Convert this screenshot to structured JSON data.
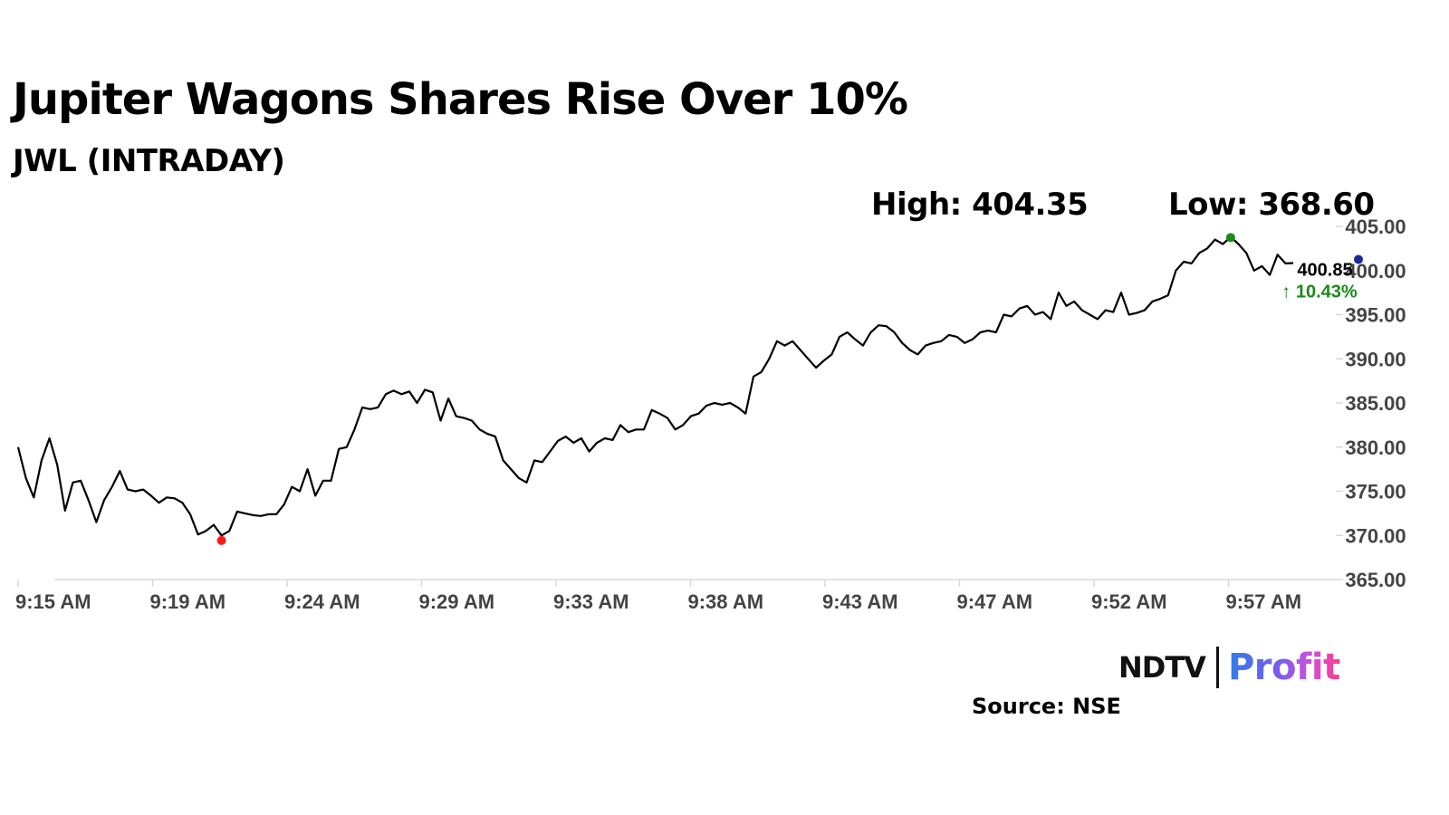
{
  "header": {
    "title": "Jupiter Wagons Shares Rise Over 10%",
    "subtitle": "JWL (INTRADAY)"
  },
  "stats": {
    "high_label": "High: 404.35",
    "low_label": "Low: 368.60"
  },
  "colors": {
    "line": "#000000",
    "axis": "#d9d9d9",
    "high_marker": "#1a8a1a",
    "low_marker": "#ff1a1a",
    "last_marker": "#1b2a9c",
    "change_text": "#1a8a1a"
  },
  "chart_data": {
    "type": "line",
    "title": "Jupiter Wagons Shares Rise Over 10%",
    "subtitle": "JWL (INTRADAY)",
    "xlabel": "",
    "ylabel": "",
    "x_ticks": [
      "9:15 AM",
      "9:19 AM",
      "9:24 AM",
      "9:29 AM",
      "9:33 AM",
      "9:38 AM",
      "9:43 AM",
      "9:47 AM",
      "9:52 AM",
      "9:57 AM"
    ],
    "y_ticks": [
      "405.00",
      "400.00",
      "395.00",
      "390.00",
      "385.00",
      "380.00",
      "375.00",
      "370.00",
      "365.00"
    ],
    "ylim": [
      365,
      405
    ],
    "y_axis_position": "right",
    "grid": false,
    "last_value_label": "400.85",
    "change_label": "10.43%",
    "series": [
      {
        "name": "JWL",
        "values": [
          380.0,
          376.5,
          374.3,
          378.5,
          381.0,
          378.0,
          372.8,
          376.0,
          376.2,
          374.0,
          371.5,
          374.0,
          375.5,
          377.3,
          375.2,
          375.0,
          375.2,
          374.5,
          373.7,
          374.3,
          374.2,
          373.7,
          372.4,
          370.1,
          370.5,
          371.2,
          370.0,
          370.5,
          372.7,
          372.5,
          372.3,
          372.2,
          372.4,
          372.4,
          373.5,
          375.5,
          375.0,
          377.5,
          374.5,
          376.2,
          376.2,
          379.8,
          380.0,
          382.0,
          384.5,
          384.3,
          384.5,
          386.0,
          386.4,
          386.0,
          386.3,
          385.0,
          386.5,
          386.2,
          383.0,
          385.5,
          383.5,
          383.3,
          383.0,
          382.0,
          381.5,
          381.2,
          378.5,
          377.5,
          376.5,
          376.0,
          378.5,
          378.3,
          379.5,
          380.7,
          381.2,
          380.5,
          381.0,
          379.5,
          380.5,
          381.0,
          380.8,
          382.5,
          381.7,
          382.0,
          382.0,
          384.2,
          383.8,
          383.3,
          382.0,
          382.5,
          383.5,
          383.8,
          384.7,
          385.0,
          384.8,
          385.0,
          384.5,
          383.8,
          388.0,
          388.5,
          390.0,
          392.0,
          391.5,
          392.0,
          391.0,
          390.0,
          389.0,
          389.8,
          390.5,
          392.5,
          393.0,
          392.2,
          391.5,
          393.0,
          393.8,
          393.7,
          393.0,
          391.8,
          391.0,
          390.5,
          391.5,
          391.8,
          392.0,
          392.7,
          392.5,
          391.8,
          392.2,
          393.0,
          393.2,
          393.0,
          395.0,
          394.8,
          395.7,
          396.0,
          395.0,
          395.3,
          394.5,
          397.5,
          396.0,
          396.5,
          395.5,
          395.0,
          394.5,
          395.5,
          395.3,
          397.5,
          395.0,
          395.2,
          395.5,
          396.5,
          396.8,
          397.2,
          400.0,
          401.0,
          400.8,
          402.0,
          402.5,
          403.5,
          403.0,
          403.8,
          403.0,
          402.0,
          400.0,
          400.5,
          399.5,
          401.8,
          400.8,
          400.85
        ]
      }
    ],
    "high_point": {
      "value": 404.35
    },
    "low_point": {
      "value": 368.6
    },
    "last_point": {
      "value": 400.85
    }
  },
  "branding": {
    "logo_ndtv": "NDTV",
    "logo_profit": "Profit",
    "source": "Source: NSE"
  }
}
